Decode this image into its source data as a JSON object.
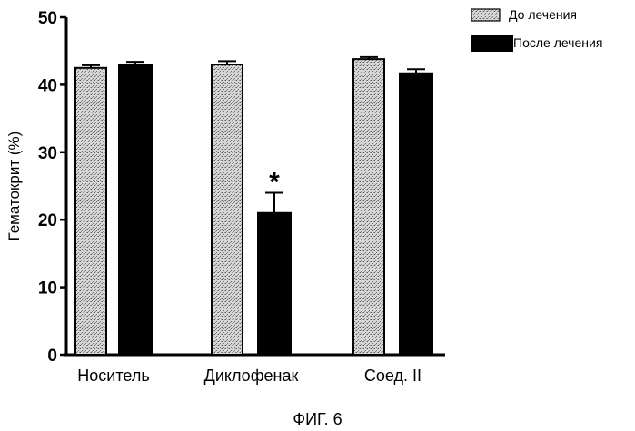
{
  "chart_data": {
    "type": "bar",
    "categories": [
      "Носитель",
      "Диклофенак",
      "Соед. II"
    ],
    "series": [
      {
        "name": "До лечения",
        "values": [
          42.5,
          43.0,
          43.8
        ],
        "errors": [
          0.4,
          0.5,
          0.3
        ],
        "fill": "hatched-gray"
      },
      {
        "name": "После лечения",
        "values": [
          43.0,
          21.0,
          41.7
        ],
        "errors": [
          0.4,
          3.0,
          0.6
        ],
        "fill": "solid-black"
      }
    ],
    "ylabel": "Гематокрит (%)",
    "xlabel": "",
    "ylim": [
      0,
      50
    ],
    "yticks": [
      "0",
      "10",
      "20",
      "30",
      "40",
      "50"
    ],
    "annotations": [
      {
        "category": "Диклофенак",
        "series": "После лечения",
        "text": "*"
      }
    ],
    "legend": "top-right",
    "grid": false
  },
  "figure_caption": "ФИГ. 6"
}
